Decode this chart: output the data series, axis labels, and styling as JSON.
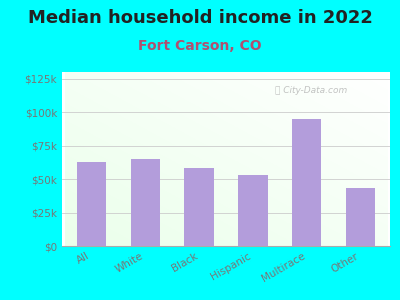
{
  "title": "Median household income in 2022",
  "subtitle": "Fort Carson, CO",
  "categories": [
    "All",
    "White",
    "Black",
    "Hispanic",
    "Multirace",
    "Other"
  ],
  "values": [
    63000,
    65000,
    58000,
    53000,
    95000,
    43000
  ],
  "bar_color": "#b39ddb",
  "title_fontsize": 13,
  "subtitle_fontsize": 10,
  "subtitle_color": "#b05070",
  "title_color": "#222222",
  "background_color": "#00ffff",
  "ylim": [
    0,
    130000
  ],
  "yticks": [
    0,
    25000,
    50000,
    75000,
    100000,
    125000
  ],
  "ytick_labels": [
    "$0",
    "$25k",
    "$50k",
    "$75k",
    "$100k",
    "$125k"
  ],
  "watermark": "ⓘ City-Data.com",
  "tick_color": "#777777",
  "tick_fontsize": 7.5
}
